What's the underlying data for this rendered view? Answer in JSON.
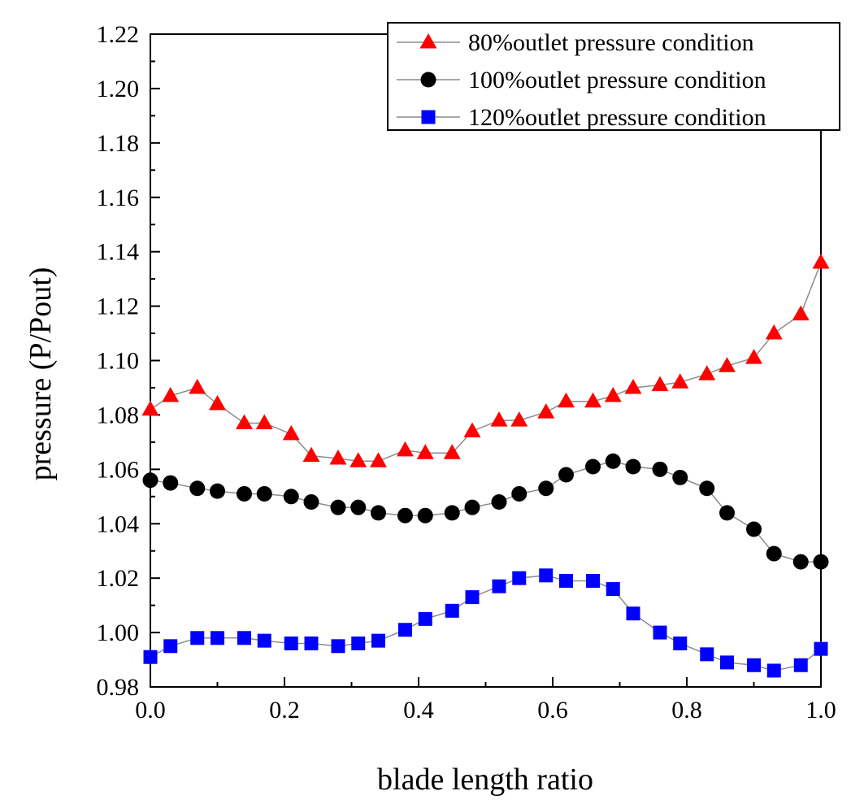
{
  "chart_data": {
    "type": "line",
    "title": "",
    "xlabel": "blade length ratio",
    "ylabel": "pressure (P/Pout)",
    "xlim": [
      0.0,
      1.0
    ],
    "ylim": [
      0.98,
      1.22
    ],
    "x_ticks": [
      "0.0",
      "0.2",
      "0.4",
      "0.6",
      "0.8",
      "1.0"
    ],
    "y_ticks": [
      "0.98",
      "1.00",
      "1.02",
      "1.04",
      "1.06",
      "1.08",
      "1.10",
      "1.12",
      "1.14",
      "1.16",
      "1.18",
      "1.20",
      "1.22"
    ],
    "grid": false,
    "legend_position": "top-right",
    "x": [
      0.0,
      0.03,
      0.07,
      0.1,
      0.14,
      0.17,
      0.21,
      0.24,
      0.28,
      0.31,
      0.34,
      0.38,
      0.41,
      0.45,
      0.48,
      0.52,
      0.55,
      0.59,
      0.62,
      0.66,
      0.69,
      0.72,
      0.76,
      0.79,
      0.83,
      0.86,
      0.9,
      0.93,
      0.97,
      1.0
    ],
    "series": [
      {
        "name": "80%outlet pressure condition",
        "color": "#ff0000",
        "marker": "triangle",
        "values": [
          1.082,
          1.087,
          1.09,
          1.084,
          1.077,
          1.077,
          1.073,
          1.065,
          1.064,
          1.063,
          1.063,
          1.067,
          1.066,
          1.066,
          1.074,
          1.078,
          1.078,
          1.081,
          1.085,
          1.085,
          1.087,
          1.09,
          1.091,
          1.092,
          1.095,
          1.098,
          1.101,
          1.11,
          1.117,
          1.136
        ]
      },
      {
        "name": "100%outlet pressure condition",
        "color": "#000000",
        "marker": "circle",
        "values": [
          1.056,
          1.055,
          1.053,
          1.052,
          1.051,
          1.051,
          1.05,
          1.048,
          1.046,
          1.046,
          1.044,
          1.043,
          1.043,
          1.044,
          1.046,
          1.048,
          1.051,
          1.053,
          1.058,
          1.061,
          1.063,
          1.061,
          1.06,
          1.057,
          1.053,
          1.044,
          1.038,
          1.029,
          1.026,
          1.026
        ]
      },
      {
        "name": "120%outlet pressure condition",
        "color": "#0000ff",
        "marker": "square",
        "values": [
          0.991,
          0.995,
          0.998,
          0.998,
          0.998,
          0.997,
          0.996,
          0.996,
          0.995,
          0.996,
          0.997,
          1.001,
          1.005,
          1.008,
          1.013,
          1.017,
          1.02,
          1.021,
          1.019,
          1.019,
          1.016,
          1.007,
          1.0,
          0.996,
          0.992,
          0.989,
          0.988,
          0.986,
          0.988,
          0.994
        ]
      }
    ]
  }
}
